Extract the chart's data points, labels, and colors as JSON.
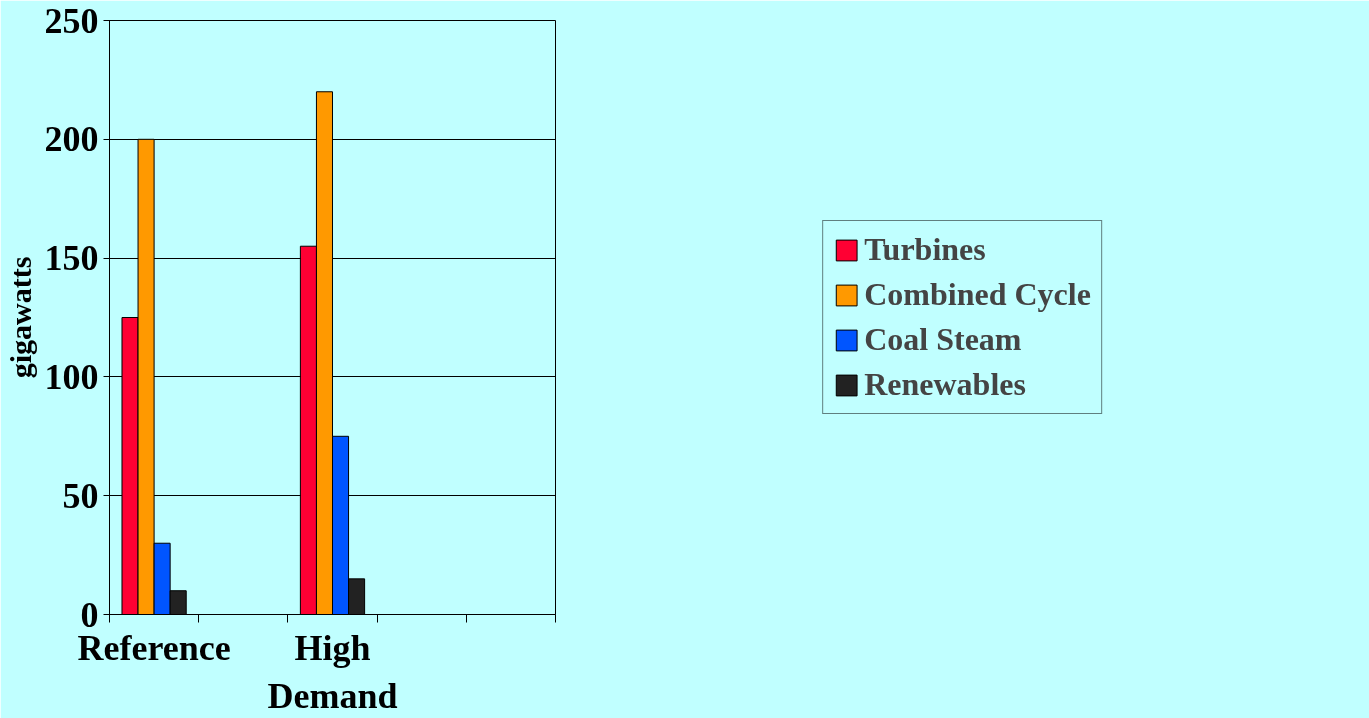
{
  "chart_data": {
    "type": "bar",
    "ylabel": "gigawatts",
    "categories": [
      "Reference",
      null,
      "High Demand",
      null,
      null
    ],
    "series": [
      {
        "name": "Turbines",
        "color": "#ff0033",
        "values": [
          125,
          null,
          155,
          null,
          null
        ]
      },
      {
        "name": "Combined Cycle",
        "color": "#ff9900",
        "values": [
          200,
          null,
          220,
          null,
          null
        ]
      },
      {
        "name": "Coal Steam",
        "color": "#0055ff",
        "values": [
          30,
          null,
          75,
          null,
          null
        ]
      },
      {
        "name": "Renewables",
        "color": "#222222",
        "values": [
          10,
          null,
          15,
          null,
          null
        ]
      }
    ],
    "ylim": [
      0,
      250
    ],
    "yticks": [
      0,
      50,
      100,
      150,
      200,
      250
    ],
    "grid": "y",
    "legend": "right"
  }
}
